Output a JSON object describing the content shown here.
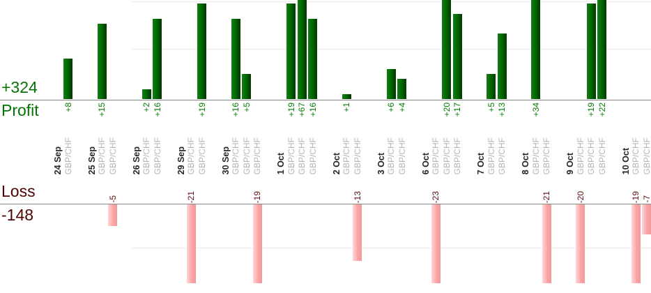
{
  "chart_data": {
    "type": "bar",
    "title": "",
    "instrument": "GBP/CHF",
    "panels": {
      "profit": {
        "label": "Profit",
        "total": "+324",
        "text_color": "#047404",
        "bar_color": "#026502",
        "axis_max_visible": 20,
        "gridline_step": 10
      },
      "loss": {
        "label": "Loss",
        "total": "-148",
        "text_color": "#4d0404",
        "bar_color": "#f8a6a6",
        "axis_max_visible": -18,
        "gridline_step": 10
      }
    },
    "layout_hints": {
      "orientation": "vertical bars, profits up from upper axis, losses down from lower axis",
      "x_labels_rotated": true,
      "grid": "sparse horizontal gridlines",
      "tall_bars_clipped_at_edges": true
    },
    "groups": [
      {
        "date": "24 Sep",
        "trades": [
          {
            "pair": "GBP/CHF",
            "value": 8,
            "label": "+8"
          }
        ]
      },
      {
        "date": "25 Sep",
        "trades": [
          {
            "pair": "GBP/CHF",
            "value": 15,
            "label": "+15"
          },
          {
            "pair": "GBP/CHF",
            "value": -5,
            "label": "-5"
          }
        ]
      },
      {
        "date": "26 Sep",
        "trades": [
          {
            "pair": "GBP/CHF",
            "value": 2,
            "label": "+2"
          },
          {
            "pair": "GBP/CHF",
            "value": 16,
            "label": "+16"
          }
        ]
      },
      {
        "date": "29 Sep",
        "trades": [
          {
            "pair": "GBP/CHF",
            "value": -21,
            "label": "-21"
          },
          {
            "pair": "GBP/CHF",
            "value": 19,
            "label": "+19"
          }
        ]
      },
      {
        "date": "30 Sep",
        "trades": [
          {
            "pair": "GBP/CHF",
            "value": 16,
            "label": "+16"
          },
          {
            "pair": "GBP/CHF",
            "value": 5,
            "label": "+5"
          },
          {
            "pair": "GBP/CHF",
            "value": -19,
            "label": "-19"
          }
        ]
      },
      {
        "date": "1 Oct",
        "trades": [
          {
            "pair": "GBP/CHF",
            "value": 19,
            "label": "+19"
          },
          {
            "pair": "GBP/CHF",
            "value": 67,
            "label": "+67"
          },
          {
            "pair": "GBP/CHF",
            "value": 16,
            "label": "+16"
          }
        ]
      },
      {
        "date": "2 Oct",
        "trades": [
          {
            "pair": "GBP/CHF",
            "value": 1,
            "label": "+1"
          },
          {
            "pair": "GBP/CHF",
            "value": -13,
            "label": "-13"
          }
        ]
      },
      {
        "date": "3 Oct",
        "trades": [
          {
            "pair": "GBP/CHF",
            "value": 6,
            "label": "+6"
          },
          {
            "pair": "GBP/CHF",
            "value": 4,
            "label": "+4"
          }
        ]
      },
      {
        "date": "6 Oct",
        "trades": [
          {
            "pair": "GBP/CHF",
            "value": -23,
            "label": "-23"
          },
          {
            "pair": "GBP/CHF",
            "value": 20,
            "label": "+20"
          },
          {
            "pair": "GBP/CHF",
            "value": 17,
            "label": "+17"
          }
        ]
      },
      {
        "date": "7 Oct",
        "trades": [
          {
            "pair": "GBP/CHF",
            "value": 5,
            "label": "+5"
          },
          {
            "pair": "GBP/CHF",
            "value": 13,
            "label": "+13"
          }
        ]
      },
      {
        "date": "8 Oct",
        "trades": [
          {
            "pair": "GBP/CHF",
            "value": 34,
            "label": "+34"
          },
          {
            "pair": "GBP/CHF",
            "value": -21,
            "label": "-21"
          }
        ]
      },
      {
        "date": "9 Oct",
        "trades": [
          {
            "pair": "GBP/CHF",
            "value": -20,
            "label": "-20"
          },
          {
            "pair": "GBP/CHF",
            "value": 19,
            "label": "+19"
          },
          {
            "pair": "GBP/CHF",
            "value": 22,
            "label": "+22"
          }
        ]
      },
      {
        "date": "10 Oct",
        "trades": [
          {
            "pair": "GBP/CHF",
            "value": -19,
            "label": "-19"
          },
          {
            "pair": "GBP/CHF",
            "value": -7,
            "label": "-7"
          }
        ]
      }
    ]
  }
}
